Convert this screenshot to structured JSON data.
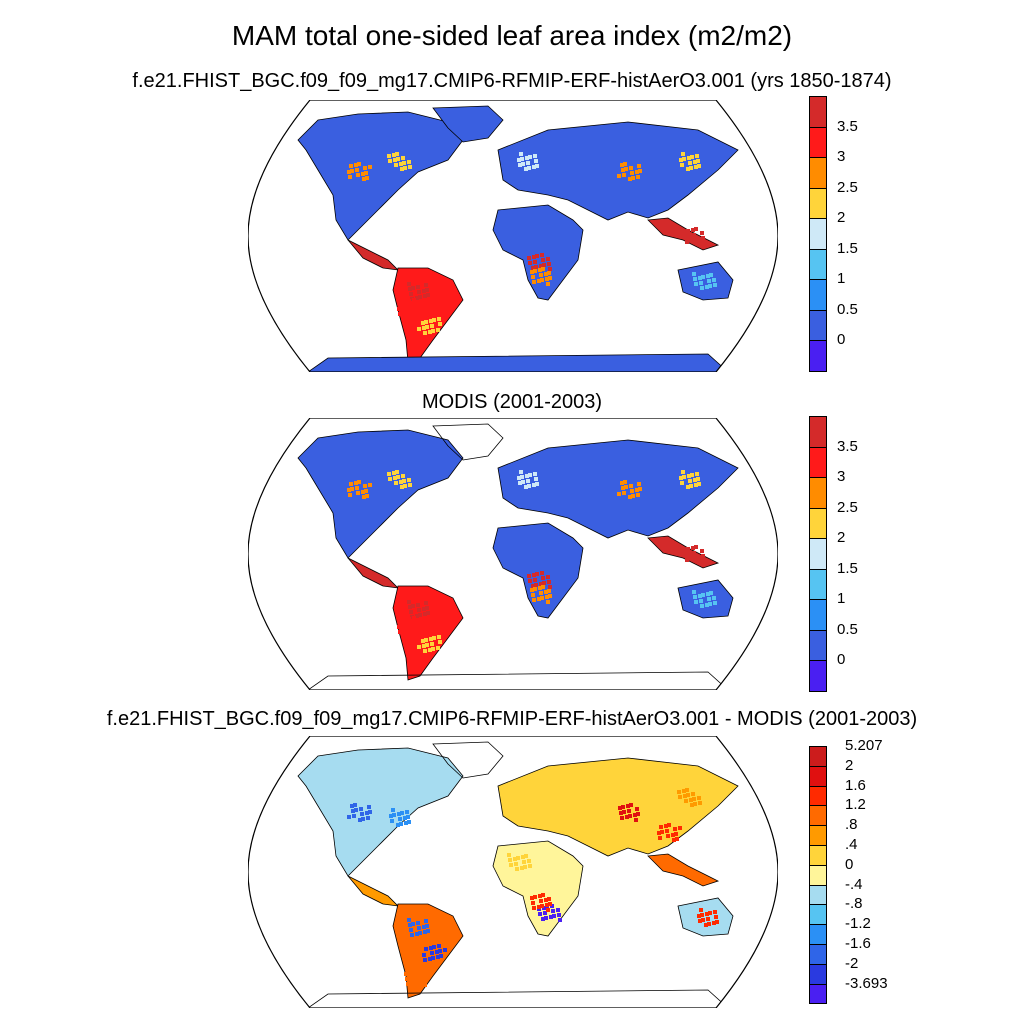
{
  "title": "MAM total one-sided leaf area index (m2/m2)",
  "panels": [
    {
      "title": "f.e21.FHIST_BGC.f09_f09_mg17.CMIP6-RFMIP-ERF-histAerO3.001 (yrs 1850-1874)",
      "colorbar_labels": [
        "3.5",
        "3",
        "2.5",
        "2",
        "1.5",
        "1",
        "0.5",
        "0"
      ]
    },
    {
      "title": "MODIS (2001-2003)",
      "colorbar_labels": [
        "3.5",
        "3",
        "2.5",
        "2",
        "1.5",
        "1",
        "0.5",
        "0"
      ]
    },
    {
      "title": "f.e21.FHIST_BGC.f09_f09_mg17.CMIP6-RFMIP-ERF-histAerO3.001 - MODIS (2001-2003)",
      "colorbar_labels": [
        "5.207",
        "2",
        "1.6",
        "1.2",
        ".8",
        ".4",
        "0",
        "-.4",
        "-.8",
        "-1.2",
        "-1.6",
        "-2",
        "-3.693"
      ]
    }
  ],
  "colors": {
    "lai_scale": [
      "#4a1ff2",
      "#3a5fe0",
      "#2b90f5",
      "#56c4f2",
      "#cfe9f7",
      "#ffd43a",
      "#ff8c00",
      "#ff1a1a",
      "#d42a2a"
    ],
    "diff_scale": [
      "#4a1ff2",
      "#2a3ae0",
      "#2f65e8",
      "#2b90f5",
      "#56c4f2",
      "#a6dcf0",
      "#fff59a",
      "#ffd43a",
      "#ff9a00",
      "#ff6a00",
      "#ff2a00",
      "#e01010",
      "#cc1c1c"
    ],
    "ocean": "#ffffff",
    "antarctica_model": "#3a5fe0"
  }
}
